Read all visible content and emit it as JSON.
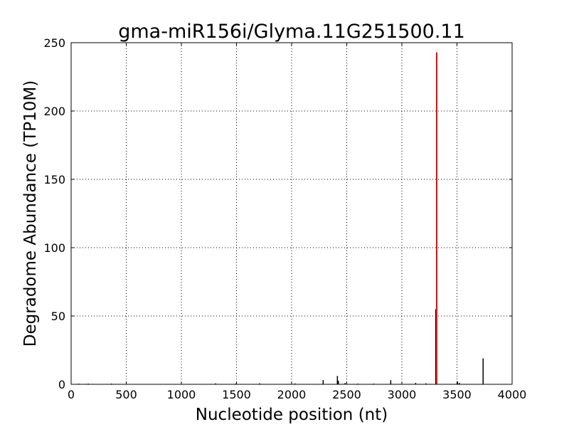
{
  "chart_data": {
    "type": "bar",
    "title": "gma-miR156i/Glyma.11G251500.11",
    "xlabel": "Nucleotide position (nt)",
    "ylabel": "Degradome Abundance (TP10M)",
    "xlim": [
      0,
      4000
    ],
    "ylim": [
      0,
      250
    ],
    "xticks": [
      0,
      500,
      1000,
      1500,
      2000,
      2500,
      3000,
      3500,
      4000
    ],
    "yticks": [
      0,
      50,
      100,
      150,
      200,
      250
    ],
    "grid": true,
    "colors": {
      "default": "#000000",
      "highlight": "#ff0000"
    },
    "series": [
      {
        "x": [
          69,
          155,
          366,
          1310,
          1490,
          1710,
          2032,
          2286,
          2415,
          2424,
          2486,
          2602,
          2744,
          2899,
          3125,
          3219,
          3308,
          3505,
          3522,
          3737
        ],
        "values": [
          0.5,
          0.5,
          0.5,
          0.7,
          0.5,
          0.7,
          0.6,
          3.1,
          6.1,
          2.6,
          1,
          0.5,
          0.5,
          3,
          1,
          0.7,
          55,
          2,
          1,
          19
        ]
      },
      {
        "highlight": true,
        "x": [
          3316
        ],
        "values": [
          243
        ]
      }
    ]
  }
}
